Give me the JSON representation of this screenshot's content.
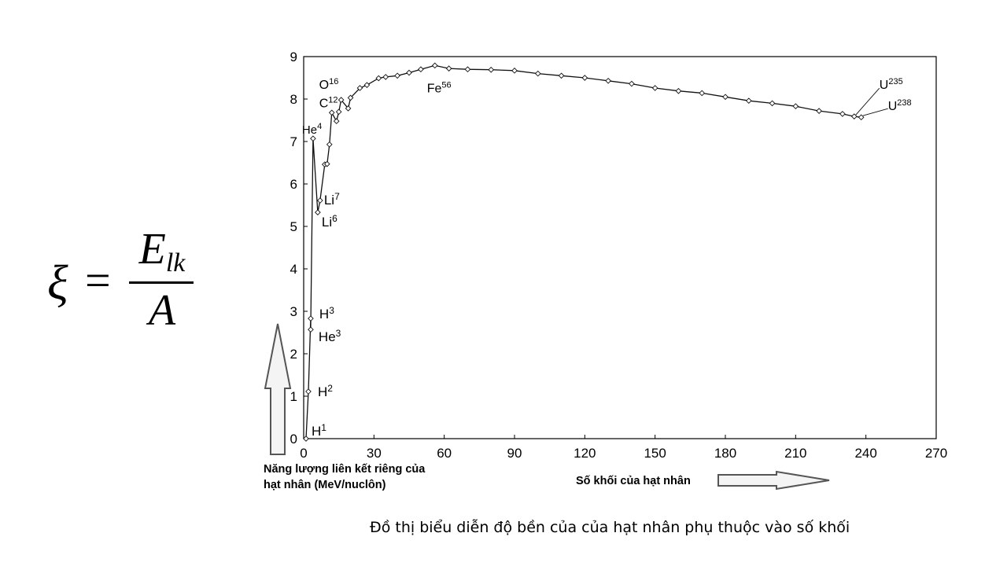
{
  "formula": {
    "lhs": "ξ",
    "equals": "=",
    "numerator": "E",
    "numerator_sub": "lk",
    "denominator": "A"
  },
  "caption": "Đồ thị biểu diễn độ bền của của hạt nhân phụ thuộc vào số khối",
  "chart_data": {
    "type": "line",
    "title": "",
    "ylabel_lines": [
      "Năng lượng liên kết riêng của",
      "hạt nhân (MeV/nuclôn)"
    ],
    "xlabel": "Số khối của hạt nhân",
    "xlim": [
      0,
      270
    ],
    "ylim": [
      0,
      9
    ],
    "xticks": [
      0,
      30,
      60,
      90,
      120,
      150,
      180,
      210,
      240,
      270
    ],
    "yticks": [
      0,
      1,
      2,
      3,
      4,
      5,
      6,
      7,
      8,
      9
    ],
    "grid": false,
    "line_color": "#111111",
    "x": [
      1,
      2,
      3,
      3,
      4,
      6,
      7,
      9,
      10,
      11,
      12,
      14,
      15,
      16,
      19,
      20,
      24,
      27,
      32,
      35,
      40,
      45,
      50,
      56,
      62,
      70,
      80,
      90,
      100,
      110,
      120,
      130,
      140,
      150,
      160,
      170,
      180,
      190,
      200,
      210,
      220,
      230,
      235,
      238
    ],
    "y": [
      0,
      1.11,
      2.83,
      2.57,
      7.07,
      5.33,
      5.61,
      6.46,
      6.47,
      6.93,
      7.68,
      7.48,
      7.7,
      7.98,
      7.78,
      8.03,
      8.26,
      8.33,
      8.49,
      8.52,
      8.55,
      8.62,
      8.7,
      8.79,
      8.72,
      8.7,
      8.69,
      8.67,
      8.6,
      8.55,
      8.5,
      8.43,
      8.36,
      8.26,
      8.19,
      8.14,
      8.05,
      7.96,
      7.9,
      7.83,
      7.72,
      7.65,
      7.59,
      7.57
    ],
    "annotations": [
      {
        "label": "H",
        "sup": "1",
        "x": 1,
        "y": 0
      },
      {
        "label": "H",
        "sup": "2",
        "x": 2,
        "y": 1.11
      },
      {
        "label": "H",
        "sup": "3",
        "x": 3,
        "y": 2.83
      },
      {
        "label": "He",
        "sup": "3",
        "x": 3,
        "y": 2.57
      },
      {
        "label": "He",
        "sup": "4",
        "x": 4,
        "y": 7.07
      },
      {
        "label": "Li",
        "sup": "6",
        "x": 6,
        "y": 5.33
      },
      {
        "label": "Li",
        "sup": "7",
        "x": 7,
        "y": 5.61
      },
      {
        "label": "C",
        "sup": "12",
        "x": 12,
        "y": 7.68
      },
      {
        "label": "O",
        "sup": "16",
        "x": 16,
        "y": 7.98
      },
      {
        "label": "Fe",
        "sup": "56",
        "x": 56,
        "y": 8.79
      },
      {
        "label": "U",
        "sup": "235",
        "x": 235,
        "y": 7.59
      },
      {
        "label": "U",
        "sup": "238",
        "x": 238,
        "y": 7.57
      }
    ]
  }
}
